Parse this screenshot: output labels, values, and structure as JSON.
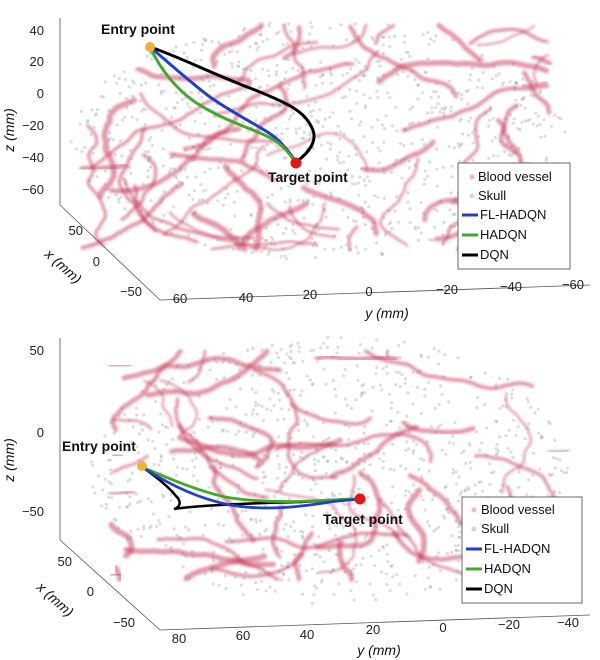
{
  "chart_data": [
    {
      "type": "scatter",
      "title": "",
      "xlabel": "y (mm)",
      "ylabel": "x (mm)",
      "zlabel": "z (mm)",
      "y_ticks": [
        "60",
        "40",
        "20",
        "0",
        "−20",
        "−40",
        "−60"
      ],
      "x_ticks": [
        "50",
        "0",
        "−50"
      ],
      "z_ticks": [
        "40",
        "20",
        "0",
        "−20",
        "−40",
        "−60"
      ],
      "annotations": [
        "Entry point",
        "Target point"
      ],
      "legend": [
        "Blood vessel",
        "Skull",
        "FL-HADQN",
        "HADQN",
        "DQN"
      ],
      "legend_placement": "bottom-right",
      "series": [
        {
          "name": "Blood vessel",
          "marker": "point cloud",
          "color": "#c8385a"
        },
        {
          "name": "Skull",
          "marker": "point cloud",
          "color": "#8a8a8a"
        },
        {
          "name": "FL-HADQN",
          "marker": "line",
          "color": "#2040c8"
        },
        {
          "name": "HADQN",
          "marker": "line",
          "color": "#44a82a"
        },
        {
          "name": "DQN",
          "marker": "line",
          "color": "#000000"
        }
      ],
      "points": {
        "entry": "#f2b233",
        "target": "#e01818"
      }
    },
    {
      "type": "scatter",
      "title": "",
      "xlabel": "y (mm)",
      "ylabel": "x (mm)",
      "zlabel": "z (mm)",
      "y_ticks": [
        "80",
        "60",
        "40",
        "20",
        "0",
        "−20",
        "−40"
      ],
      "x_ticks": [
        "50",
        "0",
        "−50"
      ],
      "z_ticks": [
        "50",
        "0",
        "−50"
      ],
      "annotations": [
        "Entry point",
        "Target point"
      ],
      "legend": [
        "Blood vessel",
        "Skull",
        "FL-HADQN",
        "HADQN",
        "DQN"
      ],
      "legend_placement": "bottom-right",
      "series": [
        {
          "name": "Blood vessel",
          "marker": "point cloud",
          "color": "#c8385a"
        },
        {
          "name": "Skull",
          "marker": "point cloud",
          "color": "#8a8a8a"
        },
        {
          "name": "FL-HADQN",
          "marker": "line",
          "color": "#2040c8"
        },
        {
          "name": "HADQN",
          "marker": "line",
          "color": "#44a82a"
        },
        {
          "name": "DQN",
          "marker": "line",
          "color": "#000000"
        }
      ],
      "points": {
        "entry": "#f2b233",
        "target": "#e01818"
      }
    }
  ]
}
